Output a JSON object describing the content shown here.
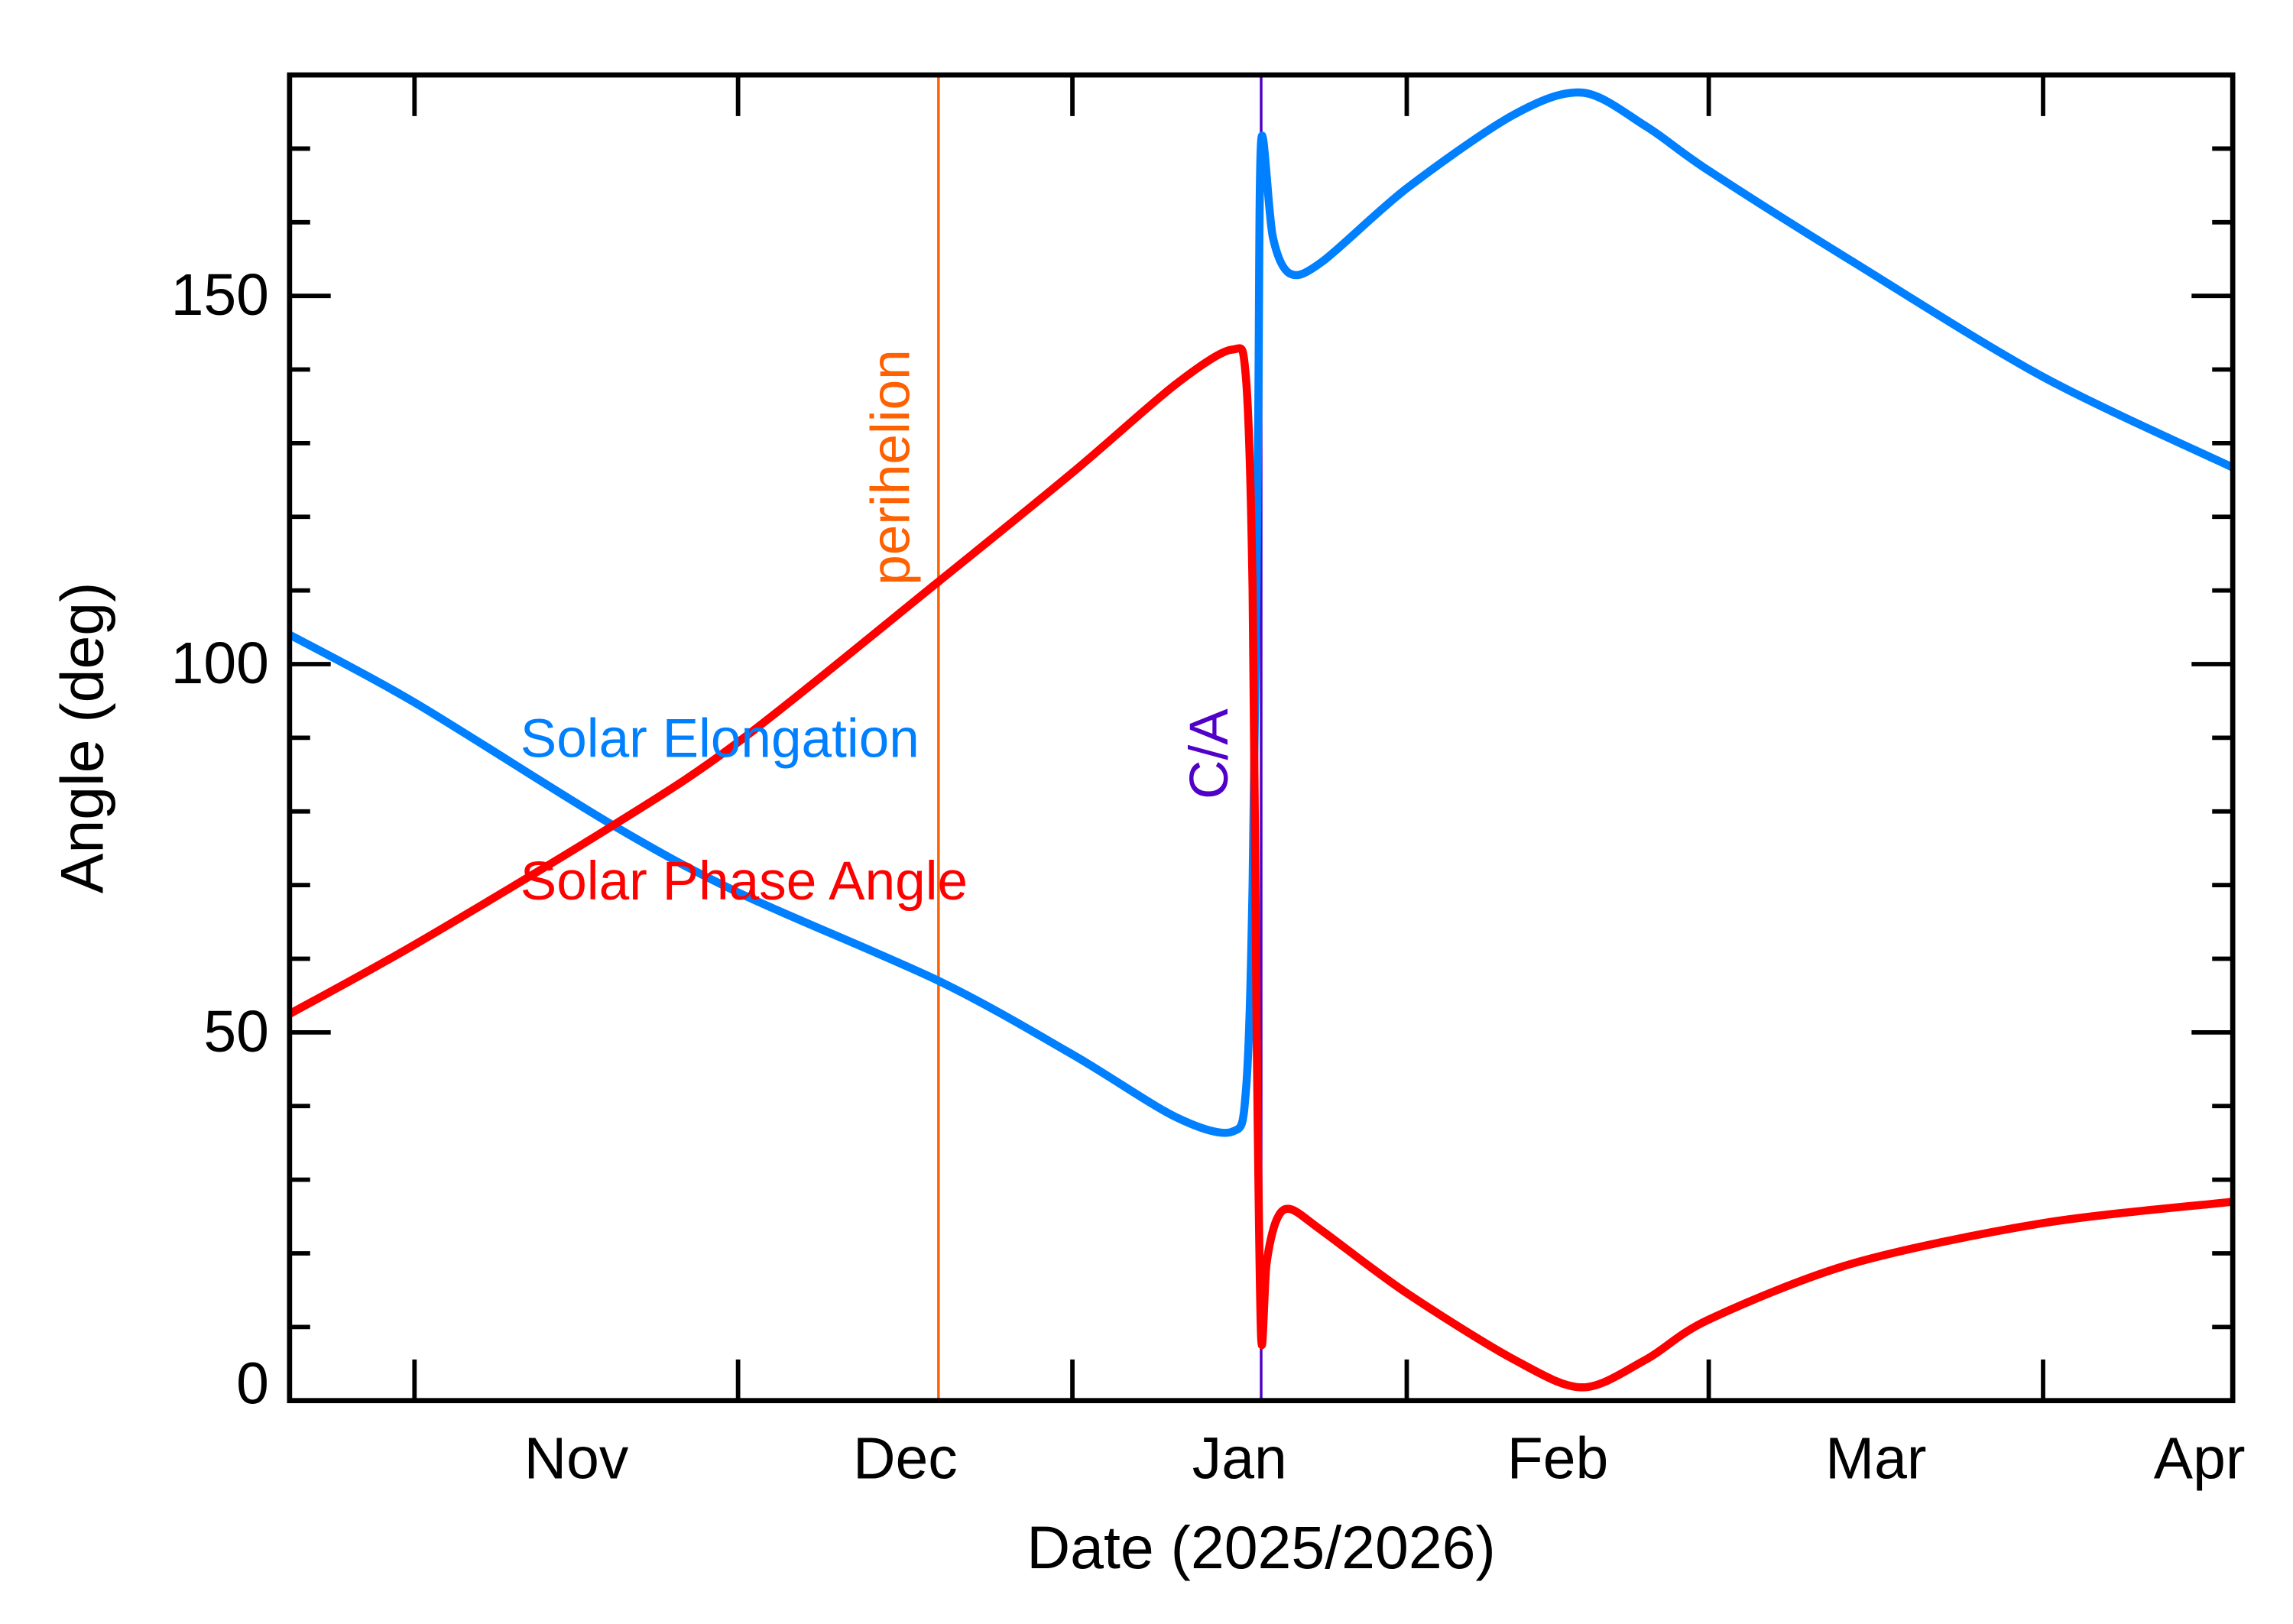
{
  "chart_data": {
    "type": "line",
    "title": "",
    "xlabel": "Date (2025/2026)",
    "ylabel": "Angle (deg)",
    "xlim": [
      "2025-10-20 10:00",
      "2026-04-18 14:00"
    ],
    "ylim": [
      0,
      180
    ],
    "grid": false,
    "y_ticks": [
      {
        "value": 0,
        "label": "0"
      },
      {
        "value": 50,
        "label": "50"
      },
      {
        "value": 100,
        "label": "100"
      },
      {
        "value": 150,
        "label": "150"
      }
    ],
    "y_minor_step": 10,
    "x_month_ticks": [
      "2025-11-01",
      "2025-12-01",
      "2026-01-01",
      "2026-02-01",
      "2026-03-01",
      "2026-04-01"
    ],
    "x_month_labels": [
      {
        "label": "Nov",
        "center": "2025-11-16"
      },
      {
        "label": "Dec",
        "center": "2025-12-16 12:00"
      },
      {
        "label": "Jan",
        "center": "2026-01-16 12:00"
      },
      {
        "label": "Feb",
        "center": "2026-02-15"
      },
      {
        "label": "Mar",
        "center": "2026-03-16 12:00"
      },
      {
        "label": "Apr",
        "center": "2026-04-15 12:00"
      }
    ],
    "series": [
      {
        "name": "Solar Elongation",
        "color": "#0080ff",
        "points": [
          [
            "2025-10-20 10:00",
            104
          ],
          [
            "2025-11-01 00:00",
            94.8
          ],
          [
            "2025-11-19 02:00",
            78.4
          ],
          [
            "2025-12-01 00:00",
            69
          ],
          [
            "2025-12-19 14:00",
            57
          ],
          [
            "2026-01-01 00:00",
            47
          ],
          [
            "2026-01-10 14:00",
            38.5
          ],
          [
            "2026-01-15 19:00",
            36.5
          ],
          [
            "2026-01-17 02:00",
            42
          ],
          [
            "2026-01-17 17:00",
            70
          ],
          [
            "2026-01-18 05:00",
            130
          ],
          [
            "2026-01-18 12:00",
            171
          ],
          [
            "2026-01-19 14:00",
            158
          ],
          [
            "2026-01-21 05:00",
            153
          ],
          [
            "2026-01-24 05:00",
            154.7
          ],
          [
            "2026-02-01 00:00",
            164.6
          ],
          [
            "2026-02-10 22:00",
            174.6
          ],
          [
            "2026-02-17 07:00",
            177.6
          ],
          [
            "2026-02-23 05:00",
            173
          ],
          [
            "2026-03-01 00:00",
            167
          ],
          [
            "2026-03-14 07:00",
            154.7
          ],
          [
            "2026-04-01 00:00",
            139
          ],
          [
            "2026-04-18 14:00",
            126.7
          ]
        ]
      },
      {
        "name": "Solar Phase Angle",
        "color": "#ff0000",
        "points": [
          [
            "2025-10-20 10:00",
            52.5
          ],
          [
            "2025-11-01 00:00",
            61.9
          ],
          [
            "2025-11-19 02:00",
            77.8
          ],
          [
            "2025-12-01 00:00",
            89.4
          ],
          [
            "2025-12-19 14:00",
            111.2
          ],
          [
            "2026-01-01 00:00",
            126
          ],
          [
            "2026-01-10 14:00",
            138
          ],
          [
            "2026-01-15 19:00",
            142.7
          ],
          [
            "2026-01-17 02:00",
            139
          ],
          [
            "2026-01-17 17:00",
            110
          ],
          [
            "2026-01-18 02:00",
            50
          ],
          [
            "2026-01-18 12:00",
            8.6
          ],
          [
            "2026-01-19 00:00",
            18.6
          ],
          [
            "2026-01-19 22:00",
            24.5
          ],
          [
            "2026-01-21 05:00",
            26
          ],
          [
            "2026-01-24 05:00",
            23
          ],
          [
            "2026-02-01 00:00",
            14.6
          ],
          [
            "2026-02-10 22:00",
            5.6
          ],
          [
            "2026-02-17 07:00",
            1.8
          ],
          [
            "2026-02-23 05:00",
            5.6
          ],
          [
            "2026-03-01 00:00",
            11
          ],
          [
            "2026-03-14 07:00",
            18.6
          ],
          [
            "2026-04-01 00:00",
            24.1
          ],
          [
            "2026-04-18 14:00",
            27
          ]
        ]
      }
    ],
    "annotations": [
      {
        "label": "perihelion",
        "date": "2025-12-19 14:00",
        "color": "#ff6000"
      },
      {
        "label": "C/A",
        "date": "2026-01-18 12:00",
        "color": "#5000c8"
      }
    ],
    "legend": [
      {
        "label": "Solar Elongation",
        "color": "#0080ff"
      },
      {
        "label": "Solar Phase Angle",
        "color": "#ff0000"
      }
    ],
    "legend_placement": "inside-left"
  }
}
